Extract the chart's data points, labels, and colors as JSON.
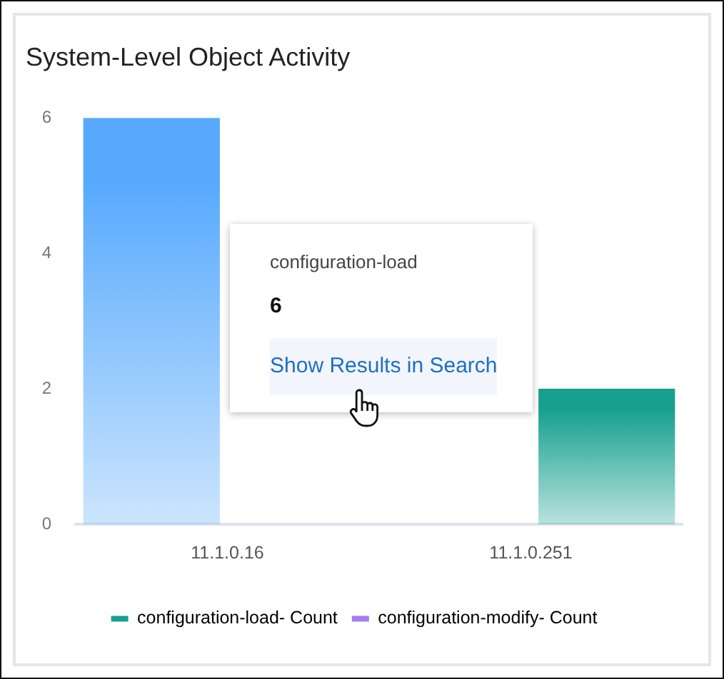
{
  "chart_data": {
    "type": "bar",
    "title": "System-Level Object Activity",
    "categories": [
      "11.1.0.16",
      "11.1.0.251"
    ],
    "series": [
      {
        "name": "configuration-load- Count",
        "color": "#17a08f",
        "colors": [
          "#56a9fd",
          null
        ],
        "values": [
          6,
          null
        ]
      },
      {
        "name": "configuration-modify- Count",
        "color": "#a47cf5",
        "colors": [
          null,
          "#17a08f"
        ],
        "values": [
          null,
          2
        ]
      }
    ],
    "ylim": [
      0,
      6
    ],
    "yticks": [
      0,
      2,
      4,
      6
    ],
    "legend": "bottom",
    "annotations": [
      "configuration-load",
      "6",
      "Show Results in Search"
    ]
  }
}
